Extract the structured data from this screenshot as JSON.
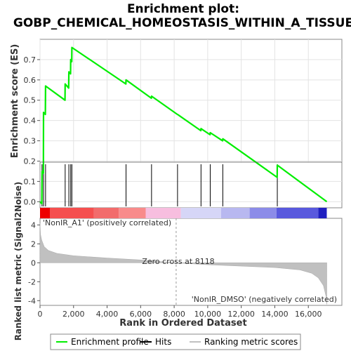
{
  "chart_data": {
    "type": "line",
    "title_line1": "Enrichment plot:",
    "title_line2": "GOBP_CHEMICAL_HOMEOSTASIS_WITHIN_A_TISSUE",
    "es_ylabel": "Enrichment score (ES)",
    "metric_ylabel": "Ranked list metric (Signal2Noise)",
    "xlabel": "Rank in Ordered Dataset",
    "xlim": [
      0,
      18000
    ],
    "es_ylim": [
      -0.03,
      0.8
    ],
    "metric_ylim": [
      -4.5,
      4.7
    ],
    "x_ticks": [
      "0",
      "2,000",
      "4,000",
      "6,000",
      "8,000",
      "10,000",
      "12,000",
      "14,000",
      "16,000"
    ],
    "es_ticks": [
      "0.0",
      "0.1",
      "0.2",
      "0.3",
      "0.4",
      "0.5",
      "0.6",
      "0.7"
    ],
    "metric_ticks": [
      "-4",
      "-2",
      "0",
      "2",
      "4"
    ],
    "n_ranked": 17100,
    "zero_cross": 8118,
    "zero_cross_label": "Zero cross at 8118",
    "positive_label": "'NonIR_A1' (positively correlated)",
    "negative_label": "'NonIR_DMSO' (negatively correlated)",
    "profile_color": "#00ee00",
    "positive_label_color": "#cc0000",
    "negative_label_color": "#2222cc",
    "hits": [
      120,
      210,
      330,
      1500,
      1720,
      1830,
      1900,
      5130,
      6650,
      8200,
      9600,
      10150,
      10900,
      14150
    ],
    "enrichment_profile": [
      [
        0,
        0.0
      ],
      [
        110,
        -0.01
      ],
      [
        120,
        0.15
      ],
      [
        200,
        0.14
      ],
      [
        210,
        0.44
      ],
      [
        320,
        0.43
      ],
      [
        330,
        0.57
      ],
      [
        1490,
        0.5
      ],
      [
        1500,
        0.58
      ],
      [
        1710,
        0.56
      ],
      [
        1720,
        0.64
      ],
      [
        1820,
        0.63
      ],
      [
        1830,
        0.7
      ],
      [
        1890,
        0.69
      ],
      [
        1900,
        0.76
      ],
      [
        5120,
        0.58
      ],
      [
        5130,
        0.6
      ],
      [
        6640,
        0.51
      ],
      [
        6650,
        0.52
      ],
      [
        8190,
        0.43
      ],
      [
        8200,
        0.43
      ],
      [
        9590,
        0.35
      ],
      [
        9600,
        0.36
      ],
      [
        10140,
        0.33
      ],
      [
        10150,
        0.34
      ],
      [
        10890,
        0.3
      ],
      [
        10900,
        0.31
      ],
      [
        14140,
        0.12
      ],
      [
        14150,
        0.18
      ],
      [
        17100,
        0.0
      ]
    ],
    "metric_curve": [
      [
        0,
        4.2
      ],
      [
        30,
        3.0
      ],
      [
        100,
        2.4
      ],
      [
        250,
        1.7
      ],
      [
        500,
        1.3
      ],
      [
        1000,
        1.0
      ],
      [
        2000,
        0.75
      ],
      [
        4000,
        0.5
      ],
      [
        6000,
        0.3
      ],
      [
        8118,
        0.0
      ],
      [
        10000,
        -0.2
      ],
      [
        12000,
        -0.35
      ],
      [
        14000,
        -0.5
      ],
      [
        15500,
        -0.75
      ],
      [
        16200,
        -1.1
      ],
      [
        16600,
        -1.6
      ],
      [
        16900,
        -2.4
      ],
      [
        17050,
        -3.5
      ],
      [
        17100,
        -4.4
      ]
    ],
    "heat_segments": [
      {
        "from": 0,
        "to": 600,
        "color": "#ee0000"
      },
      {
        "from": 600,
        "to": 3200,
        "color": "#f54f4f"
      },
      {
        "from": 3200,
        "to": 4700,
        "color": "#f26c6c"
      },
      {
        "from": 4700,
        "to": 6300,
        "color": "#f88b8b"
      },
      {
        "from": 6300,
        "to": 8400,
        "color": "#f7bedf"
      },
      {
        "from": 8400,
        "to": 10800,
        "color": "#d6d6f7"
      },
      {
        "from": 10800,
        "to": 12500,
        "color": "#b8b8f0"
      },
      {
        "from": 12500,
        "to": 14100,
        "color": "#8c8ce8"
      },
      {
        "from": 14100,
        "to": 16600,
        "color": "#5959dd"
      },
      {
        "from": 16600,
        "to": 17100,
        "color": "#2020c0"
      }
    ],
    "legend": [
      {
        "label": "Enrichment profile",
        "color": "#00ee00",
        "kind": "line"
      },
      {
        "label": "Hits",
        "color": "#000000",
        "kind": "line"
      },
      {
        "label": "Ranking metric scores",
        "color": "#c0c0c0",
        "kind": "line"
      }
    ]
  }
}
